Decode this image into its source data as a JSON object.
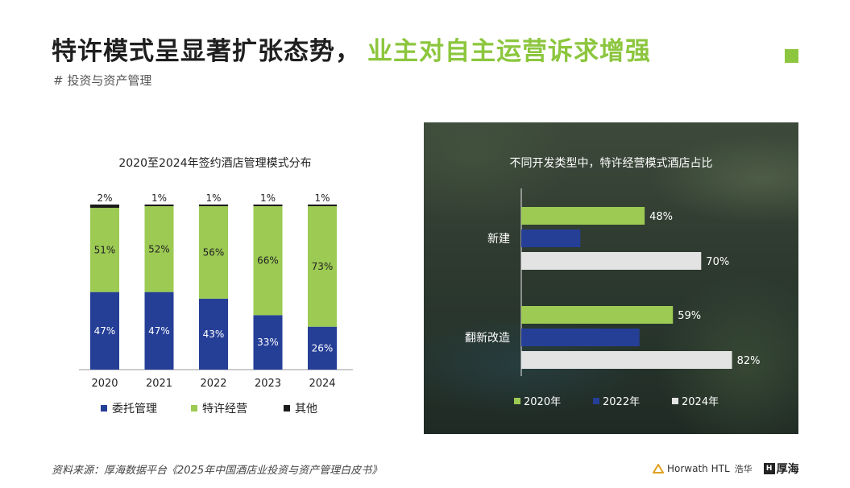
{
  "header": {
    "title_part1": "特许模式呈显著扩张态势，",
    "title_part2": "业主对自主运营诉求增强",
    "subtitle": "# 投资与资产管理",
    "accent_color": "#8cc63e"
  },
  "footer": {
    "source": "资料来源：厚海数据平台《2025年中国酒店业投资与资产管理白皮书》",
    "logo1_name": "Horwath HTL",
    "logo1_cn": "浩华",
    "logo2_name": "厚海",
    "logo2_mark": "H"
  },
  "chart_data": [
    {
      "type": "bar",
      "stacked": true,
      "title": "2020至2024年签约酒店管理模式分布",
      "categories": [
        "2020",
        "2021",
        "2022",
        "2023",
        "2024"
      ],
      "series": [
        {
          "name": "委托管理",
          "color": "#253f97",
          "values": [
            47,
            47,
            43,
            33,
            26
          ],
          "labels": [
            "47%",
            "47%",
            "43%",
            "33%",
            "26%"
          ]
        },
        {
          "name": "特许经营",
          "color": "#9cca53",
          "values": [
            51,
            52,
            56,
            66,
            73
          ],
          "labels": [
            "51%",
            "52%",
            "56%",
            "66%",
            "73%"
          ]
        },
        {
          "name": "其他",
          "color": "#1a1a1a",
          "values": [
            2,
            1,
            1,
            1,
            1
          ],
          "labels": [
            "2%",
            "1%",
            "1%",
            "1%",
            "1%"
          ]
        }
      ],
      "ylim": [
        0,
        100
      ],
      "legend": "bottom"
    },
    {
      "type": "bar",
      "orientation": "horizontal",
      "title": "不同开发类型中，特许经营模式酒店占比",
      "categories": [
        "新建",
        "翻新改造"
      ],
      "series": [
        {
          "name": "2020年",
          "color": "#9cca53",
          "values": [
            48,
            59
          ],
          "labels": [
            "48%",
            "59%"
          ]
        },
        {
          "name": "2022年",
          "color": "#253f97",
          "values": [
            null,
            null
          ],
          "labels": [
            "",
            ""
          ]
        },
        {
          "name": "2024年",
          "color": "#e3e3e3",
          "values": [
            70,
            82
          ],
          "labels": [
            "70%",
            "82%"
          ]
        }
      ],
      "xlim": [
        0,
        100
      ],
      "legend": "bottom"
    }
  ]
}
